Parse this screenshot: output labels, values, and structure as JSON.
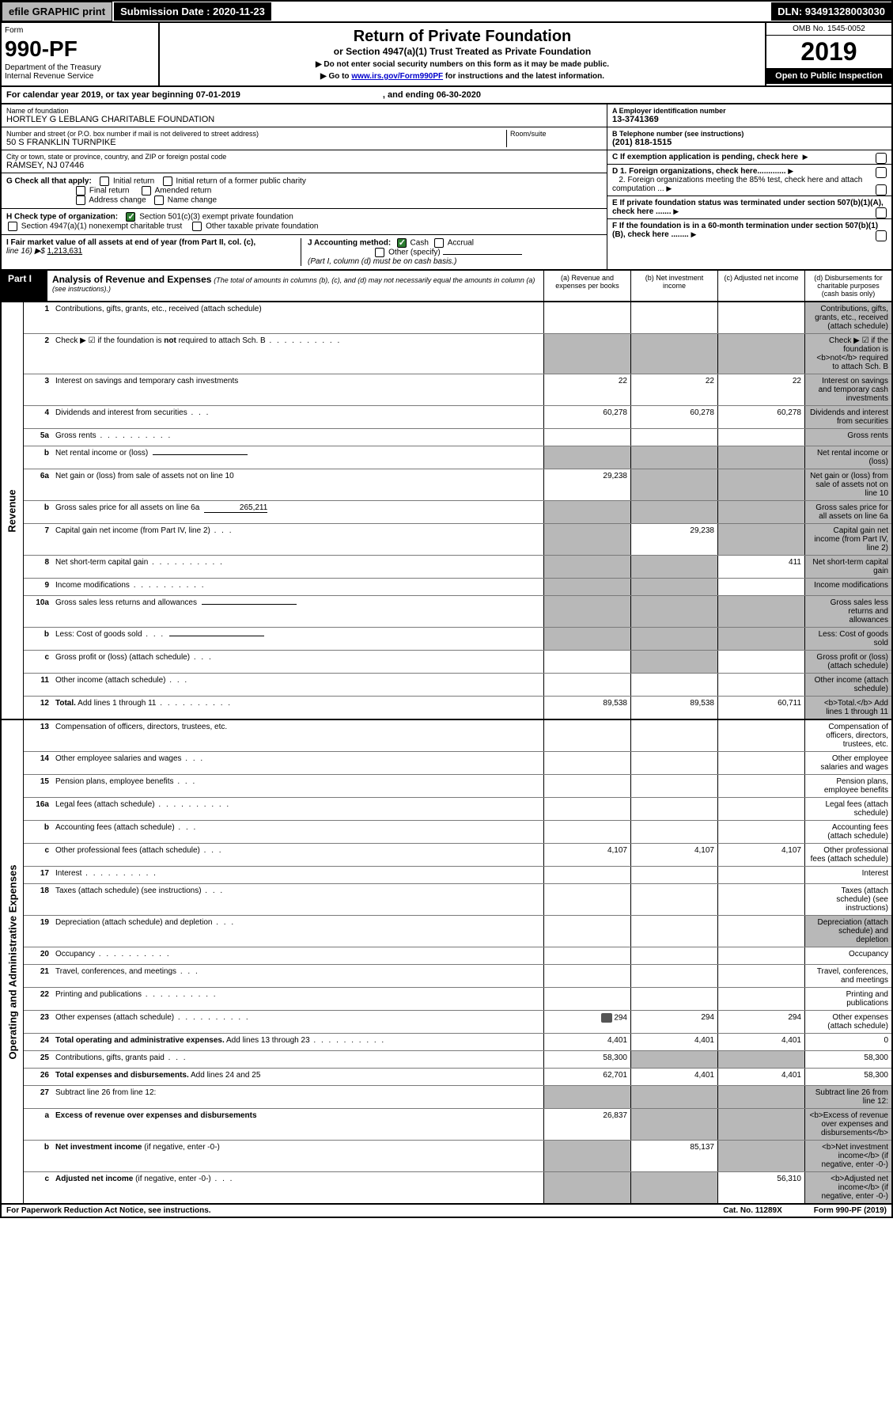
{
  "topbar": {
    "efile": "efile GRAPHIC print",
    "submission": "Submission Date : 2020-11-23",
    "dln": "DLN: 93491328003030"
  },
  "header": {
    "form_label": "Form",
    "form_no": "990-PF",
    "dept1": "Department of the Treasury",
    "dept2": "Internal Revenue Service",
    "title": "Return of Private Foundation",
    "subtitle": "or Section 4947(a)(1) Trust Treated as Private Foundation",
    "note1": "▶ Do not enter social security numbers on this form as it may be made public.",
    "note2_pre": "▶ Go to ",
    "note2_link": "www.irs.gov/Form990PF",
    "note2_post": " for instructions and the latest information.",
    "omb": "OMB No. 1545-0052",
    "year": "2019",
    "open": "Open to Public Inspection"
  },
  "calendar": {
    "text1": "For calendar year 2019, or tax year beginning 07-01-2019",
    "text2": ", and ending 06-30-2020"
  },
  "info": {
    "name_label": "Name of foundation",
    "name": "HORTLEY G LEBLANG CHARITABLE FOUNDATION",
    "ein_label": "A Employer identification number",
    "ein": "13-3741369",
    "addr_label": "Number and street (or P.O. box number if mail is not delivered to street address)",
    "addr": "50 S FRANKLIN TURNPIKE",
    "room_label": "Room/suite",
    "phone_label": "B Telephone number (see instructions)",
    "phone": "(201) 818-1515",
    "city_label": "City or town, state or province, country, and ZIP or foreign postal code",
    "city": "RAMSEY, NJ  07446",
    "c_label": "C If exemption application is pending, check here",
    "g_label": "G Check all that apply:",
    "g_initial": "Initial return",
    "g_initial_former": "Initial return of a former public charity",
    "g_final": "Final return",
    "g_amended": "Amended return",
    "g_address": "Address change",
    "g_name": "Name change",
    "d1": "D 1. Foreign organizations, check here.............",
    "d2": "2. Foreign organizations meeting the 85% test, check here and attach computation ...",
    "h_label": "H Check type of organization:",
    "h_501c3": "Section 501(c)(3) exempt private foundation",
    "h_4947": "Section 4947(a)(1) nonexempt charitable trust",
    "h_other": "Other taxable private foundation",
    "e_label": "E If private foundation status was terminated under section 507(b)(1)(A), check here .......",
    "i_label": "I Fair market value of all assets at end of year (from Part II, col. (c),",
    "i_line": "line 16) ▶$  ",
    "i_val": "1,213,631",
    "j_label": "J Accounting method:",
    "j_cash": "Cash",
    "j_accrual": "Accrual",
    "j_other": "Other (specify)",
    "j_note": "(Part I, column (d) must be on cash basis.)",
    "f_label": "F If the foundation is in a 60-month termination under section 507(b)(1)(B), check here ........"
  },
  "part1": {
    "label": "Part I",
    "hdr": "Analysis of Revenue and Expenses",
    "sub": "(The total of amounts in columns (b), (c), and (d) may not necessarily equal the amounts in column (a) (see instructions).)",
    "col_a": "(a)   Revenue and expenses per books",
    "col_b": "(b)  Net investment income",
    "col_c": "(c)  Adjusted net income",
    "col_d": "(d)  Disbursements for charitable purposes (cash basis only)"
  },
  "sections": {
    "revenue": "Revenue",
    "expenses": "Operating and Administrative Expenses"
  },
  "rows": [
    {
      "n": "1",
      "d": "Contributions, gifts, grants, etc., received (attach schedule)",
      "a": "",
      "b": "",
      "c": "",
      "d_sh": true
    },
    {
      "n": "2",
      "d": "Check ▶ ☑ if the foundation is <b>not</b> required to attach Sch. B",
      "dotted": true,
      "a_sh": true,
      "b_sh": true,
      "c_sh": true,
      "d_sh": true,
      "html": true
    },
    {
      "n": "3",
      "d": "Interest on savings and temporary cash investments",
      "a": "22",
      "b": "22",
      "c": "22",
      "d_sh": true
    },
    {
      "n": "4",
      "d": "Dividends and interest from securities",
      "dotted_s": true,
      "a": "60,278",
      "b": "60,278",
      "c": "60,278",
      "d_sh": true
    },
    {
      "n": "5a",
      "d": "Gross rents",
      "dotted": true,
      "d_sh": true
    },
    {
      "n": "b",
      "d": "Net rental income or (loss)",
      "field": true,
      "a_sh": true,
      "b_sh": true,
      "c_sh": true,
      "d_sh": true
    },
    {
      "n": "6a",
      "d": "Net gain or (loss) from sale of assets not on line 10",
      "a": "29,238",
      "b_sh": true,
      "c_sh": true,
      "d_sh": true
    },
    {
      "n": "b",
      "d": "Gross sales price for all assets on line 6a",
      "field_val": "265,211",
      "a_sh": true,
      "b_sh": true,
      "c_sh": true,
      "d_sh": true
    },
    {
      "n": "7",
      "d": "Capital gain net income (from Part IV, line 2)",
      "dotted_s": true,
      "a_sh": true,
      "b": "29,238",
      "c_sh": true,
      "d_sh": true
    },
    {
      "n": "8",
      "d": "Net short-term capital gain",
      "dotted": true,
      "a_sh": true,
      "b_sh": true,
      "c": "411",
      "d_sh": true
    },
    {
      "n": "9",
      "d": "Income modifications",
      "dotted": true,
      "a_sh": true,
      "b_sh": true,
      "d_sh": true
    },
    {
      "n": "10a",
      "d": "Gross sales less returns and allowances",
      "field": true,
      "a_sh": true,
      "b_sh": true,
      "c_sh": true,
      "d_sh": true
    },
    {
      "n": "b",
      "d": "Less: Cost of goods sold",
      "dotted_s": true,
      "field": true,
      "a_sh": true,
      "b_sh": true,
      "c_sh": true,
      "d_sh": true
    },
    {
      "n": "c",
      "d": "Gross profit or (loss) (attach schedule)",
      "dotted_s": true,
      "b_sh": true,
      "d_sh": true
    },
    {
      "n": "11",
      "d": "Other income (attach schedule)",
      "dotted_s": true,
      "d_sh": true
    },
    {
      "n": "12",
      "d": "<b>Total.</b> Add lines 1 through 11",
      "dotted": true,
      "a": "89,538",
      "b": "89,538",
      "c": "60,711",
      "d_sh": true,
      "html": true
    }
  ],
  "exp_rows": [
    {
      "n": "13",
      "d": "Compensation of officers, directors, trustees, etc."
    },
    {
      "n": "14",
      "d": "Other employee salaries and wages",
      "dotted_s": true
    },
    {
      "n": "15",
      "d": "Pension plans, employee benefits",
      "dotted_s": true
    },
    {
      "n": "16a",
      "d": "Legal fees (attach schedule)",
      "dotted": true
    },
    {
      "n": "b",
      "d": "Accounting fees (attach schedule)",
      "dotted_s": true
    },
    {
      "n": "c",
      "d": "Other professional fees (attach schedule)",
      "dotted_s": true,
      "a": "4,107",
      "b": "4,107",
      "c": "4,107"
    },
    {
      "n": "17",
      "d": "Interest",
      "dotted": true
    },
    {
      "n": "18",
      "d": "Taxes (attach schedule) (see instructions)",
      "dotted_s": true
    },
    {
      "n": "19",
      "d": "Depreciation (attach schedule) and depletion",
      "dotted_s": true,
      "d_sh": true
    },
    {
      "n": "20",
      "d": "Occupancy",
      "dotted": true
    },
    {
      "n": "21",
      "d": "Travel, conferences, and meetings",
      "dotted_s": true
    },
    {
      "n": "22",
      "d": "Printing and publications",
      "dotted": true
    },
    {
      "n": "23",
      "d": "Other expenses (attach schedule)",
      "dotted": true,
      "a": "294",
      "b": "294",
      "c": "294",
      "attach": true
    },
    {
      "n": "24",
      "d": "<b>Total operating and administrative expenses.</b> Add lines 13 through 23",
      "dotted": true,
      "a": "4,401",
      "b": "4,401",
      "c": "4,401",
      "dv": "0",
      "html": true
    },
    {
      "n": "25",
      "d": "Contributions, gifts, grants paid",
      "dotted_s": true,
      "a": "58,300",
      "b_sh": true,
      "c_sh": true,
      "dv": "58,300"
    },
    {
      "n": "26",
      "d": "<b>Total expenses and disbursements.</b> Add lines 24 and 25",
      "a": "62,701",
      "b": "4,401",
      "c": "4,401",
      "dv": "58,300",
      "html": true
    },
    {
      "n": "27",
      "d": "Subtract line 26 from line 12:",
      "a_sh": true,
      "b_sh": true,
      "c_sh": true,
      "d_sh": true
    },
    {
      "n": "a",
      "d": "<b>Excess of revenue over expenses and disbursements</b>",
      "a": "26,837",
      "b_sh": true,
      "c_sh": true,
      "d_sh": true,
      "html": true
    },
    {
      "n": "b",
      "d": "<b>Net investment income</b> (if negative, enter -0-)",
      "a_sh": true,
      "b": "85,137",
      "c_sh": true,
      "d_sh": true,
      "html": true
    },
    {
      "n": "c",
      "d": "<b>Adjusted net income</b> (if negative, enter -0-)",
      "dotted_s": true,
      "a_sh": true,
      "b_sh": true,
      "c": "56,310",
      "d_sh": true,
      "html": true
    }
  ],
  "footer": {
    "left": "For Paperwork Reduction Act Notice, see instructions.",
    "mid": "Cat. No. 11289X",
    "right": "Form 990-PF (2019)"
  }
}
